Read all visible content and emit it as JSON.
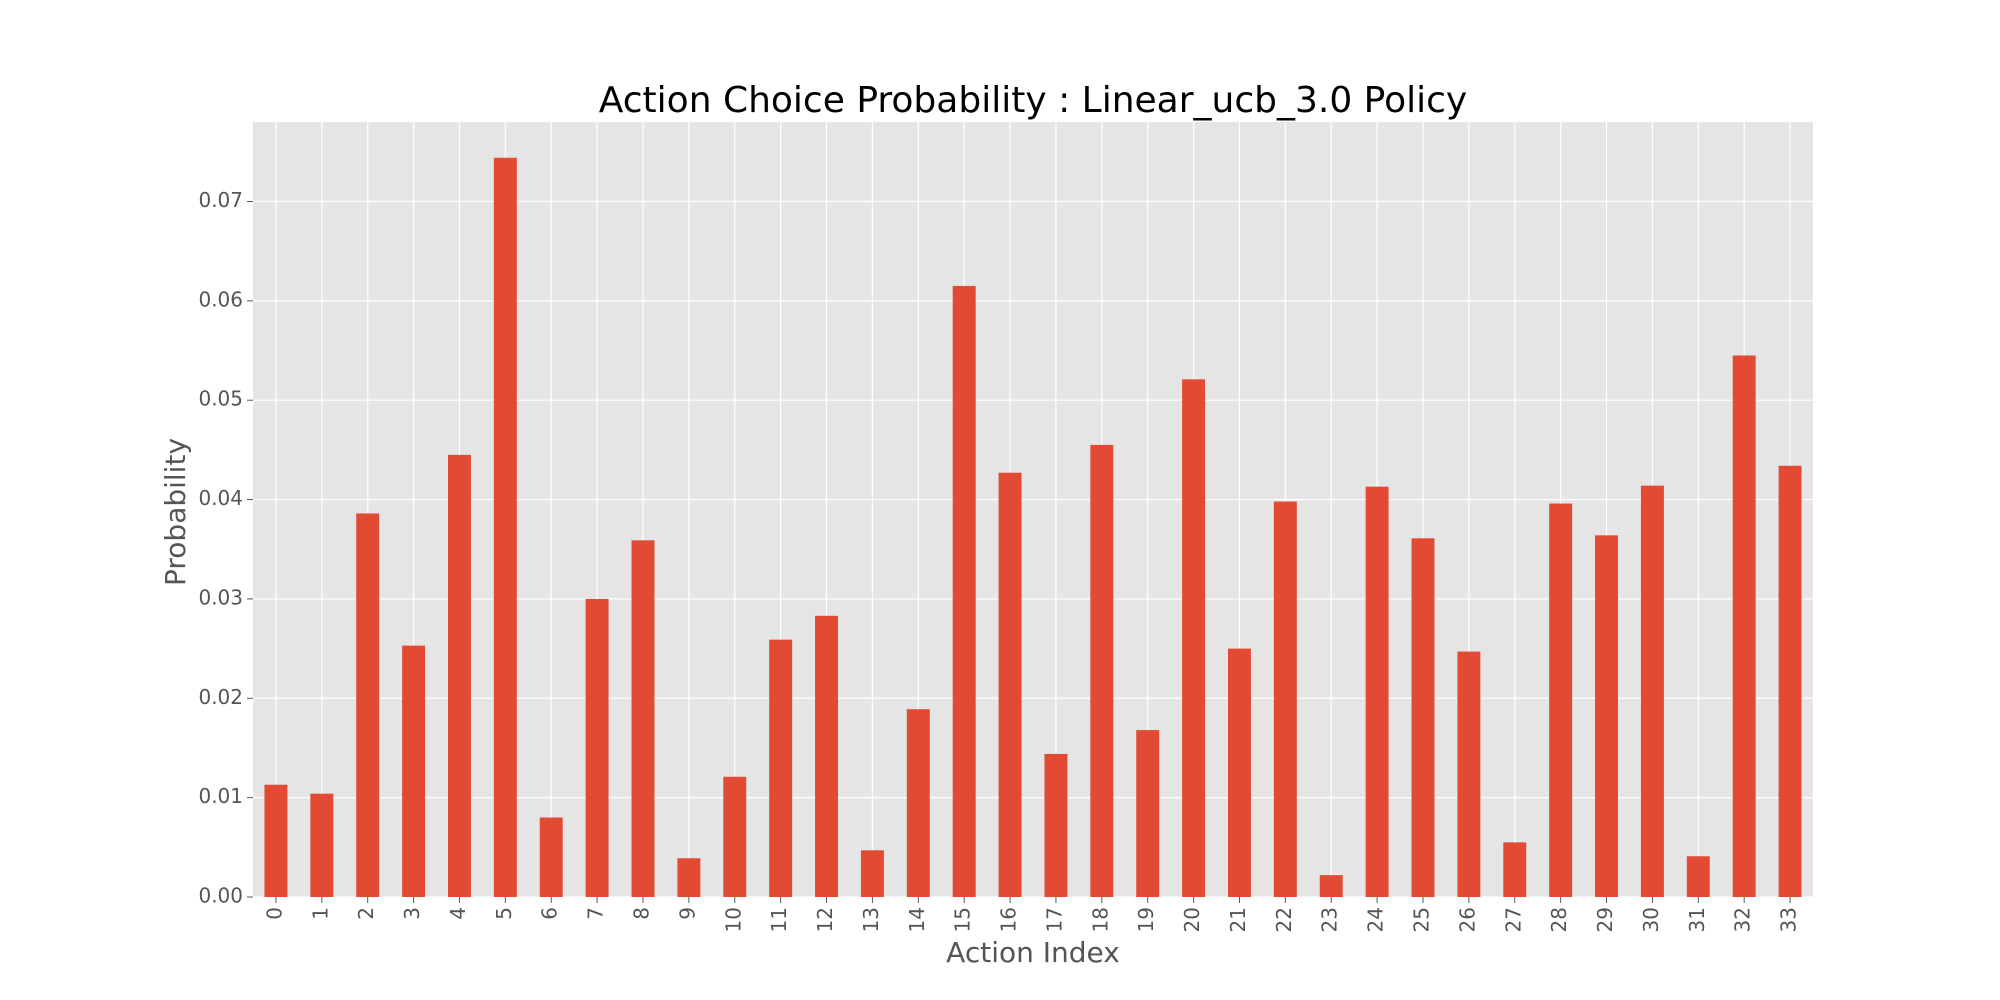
{
  "chart_data": {
    "type": "bar",
    "title": "Action Choice Probability : Linear_ucb_3.0 Policy",
    "xlabel": "Action Index",
    "ylabel": "Probability",
    "categories": [
      "0",
      "1",
      "2",
      "3",
      "4",
      "5",
      "6",
      "7",
      "8",
      "9",
      "10",
      "11",
      "12",
      "13",
      "14",
      "15",
      "16",
      "17",
      "18",
      "19",
      "20",
      "21",
      "22",
      "23",
      "24",
      "25",
      "26",
      "27",
      "28",
      "29",
      "30",
      "31",
      "32",
      "33"
    ],
    "values": [
      0.0113,
      0.0104,
      0.0386,
      0.0253,
      0.0445,
      0.0744,
      0.008,
      0.03,
      0.0359,
      0.0039,
      0.0121,
      0.0259,
      0.0283,
      0.0047,
      0.0189,
      0.0615,
      0.0427,
      0.0144,
      0.0455,
      0.0168,
      0.0521,
      0.025,
      0.0398,
      0.0022,
      0.0413,
      0.0361,
      0.0247,
      0.0055,
      0.0396,
      0.0364,
      0.0414,
      0.0041,
      0.0545,
      0.0434
    ],
    "yticks": [
      "0.00",
      "0.01",
      "0.02",
      "0.03",
      "0.04",
      "0.05",
      "0.06",
      "0.07"
    ],
    "ylim": [
      0,
      0.078
    ],
    "grid": true,
    "colors": {
      "bar": "#E24A33",
      "plot_bg": "#E5E5E5",
      "grid": "#FFFFFF"
    }
  }
}
